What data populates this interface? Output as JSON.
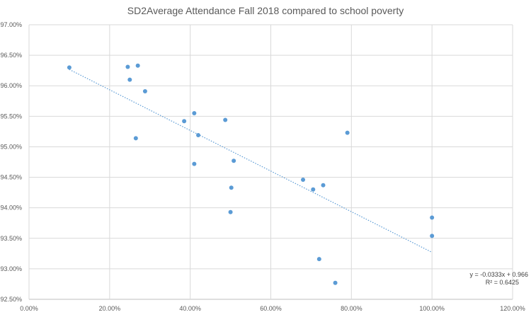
{
  "chart_data": {
    "type": "scatter",
    "title": "SD2Average Attendance Fall 2018 compared to school poverty",
    "xlabel": "",
    "ylabel": "",
    "xlim": [
      0,
      1.2
    ],
    "ylim": [
      0.925,
      0.97
    ],
    "x_ticks": [
      "0.00%",
      "20.00%",
      "40.00%",
      "60.00%",
      "80.00%",
      "100.00%",
      "120.00%"
    ],
    "y_ticks": [
      "92.50%",
      "93.00%",
      "93.50%",
      "94.00%",
      "94.50%",
      "95.00%",
      "95.50%",
      "96.00%",
      "96.50%",
      "97.00%"
    ],
    "grid": true,
    "series": [
      {
        "points": [
          {
            "x": 0.1,
            "y": 0.963
          },
          {
            "x": 0.245,
            "y": 0.9631
          },
          {
            "x": 0.27,
            "y": 0.9633
          },
          {
            "x": 0.25,
            "y": 0.961
          },
          {
            "x": 0.288,
            "y": 0.9591
          },
          {
            "x": 0.41,
            "y": 0.9555
          },
          {
            "x": 0.385,
            "y": 0.9542
          },
          {
            "x": 0.487,
            "y": 0.9544
          },
          {
            "x": 0.265,
            "y": 0.9514
          },
          {
            "x": 0.42,
            "y": 0.9519
          },
          {
            "x": 0.41,
            "y": 0.9472
          },
          {
            "x": 0.508,
            "y": 0.9477
          },
          {
            "x": 0.502,
            "y": 0.9433
          },
          {
            "x": 0.5,
            "y": 0.9393
          },
          {
            "x": 0.68,
            "y": 0.9446
          },
          {
            "x": 0.705,
            "y": 0.943
          },
          {
            "x": 0.73,
            "y": 0.9437
          },
          {
            "x": 0.79,
            "y": 0.9523
          },
          {
            "x": 1.0,
            "y": 0.9384
          },
          {
            "x": 1.0,
            "y": 0.9354
          },
          {
            "x": 0.72,
            "y": 0.9316
          },
          {
            "x": 0.76,
            "y": 0.9277
          }
        ]
      }
    ],
    "trendline": {
      "type": "linear",
      "slope": -0.0333,
      "intercept": 0.966,
      "x_range": [
        0.1,
        1.0
      ],
      "equation": "y = -0.0333x + 0.966",
      "r_squared": "R² = 0.6425"
    },
    "colors": {
      "points": "#5b9bd5",
      "trendline": "#5b9bd5",
      "grid": "#d9d9d9"
    }
  }
}
